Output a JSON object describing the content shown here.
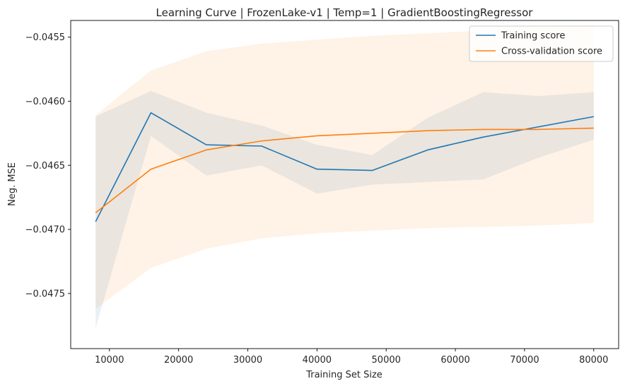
{
  "chart_data": {
    "type": "line",
    "title": "Learning Curve | FrozenLake-v1 | Temp=1 | GradientBoostingRegressor",
    "xlabel": "Training Set Size",
    "ylabel": "Neg. MSE",
    "xlim": [
      4400,
      83600
    ],
    "ylim": [
      -0.04793,
      -0.04537
    ],
    "xticks": [
      10000,
      20000,
      30000,
      40000,
      50000,
      60000,
      70000,
      80000
    ],
    "xtick_labels": [
      "10000",
      "20000",
      "30000",
      "40000",
      "50000",
      "60000",
      "70000",
      "80000"
    ],
    "yticks": [
      -0.0455,
      -0.046,
      -0.0465,
      -0.047,
      -0.0475
    ],
    "ytick_labels": [
      "−0.0455",
      "−0.0460",
      "−0.0465",
      "−0.0470",
      "−0.0475"
    ],
    "grid": false,
    "legend_position": "top-right",
    "x": [
      8000,
      16000,
      24000,
      32000,
      40000,
      48000,
      56000,
      64000,
      72000,
      80000
    ],
    "series": [
      {
        "name": "Training score",
        "color": "#1f77b4",
        "band_color": "#1f77b4",
        "values": [
          -0.04694,
          -0.04609,
          -0.04634,
          -0.04635,
          -0.04653,
          -0.04654,
          -0.04638,
          -0.04628,
          -0.0462,
          -0.04612
        ],
        "band_upper": [
          -0.04612,
          -0.04592,
          -0.04609,
          -0.04619,
          -0.04634,
          -0.04642,
          -0.04613,
          -0.04593,
          -0.04596,
          -0.04593
        ],
        "band_lower": [
          -0.04777,
          -0.04627,
          -0.04658,
          -0.0465,
          -0.04672,
          -0.04665,
          -0.04663,
          -0.04661,
          -0.04644,
          -0.0463
        ]
      },
      {
        "name": "Cross-validation score",
        "color": "#ff7f0e",
        "band_color": "#ff7f0e",
        "values": [
          -0.04687,
          -0.04653,
          -0.04638,
          -0.04631,
          -0.04627,
          -0.04625,
          -0.04623,
          -0.04622,
          -0.04622,
          -0.04621
        ],
        "band_upper": [
          -0.04611,
          -0.04576,
          -0.04561,
          -0.04555,
          -0.04552,
          -0.04549,
          -0.04547,
          -0.04545,
          -0.04543,
          -0.04541
        ],
        "band_lower": [
          -0.04762,
          -0.0473,
          -0.04715,
          -0.04707,
          -0.04703,
          -0.04701,
          -0.04699,
          -0.04698,
          -0.04697,
          -0.04695
        ]
      }
    ]
  }
}
